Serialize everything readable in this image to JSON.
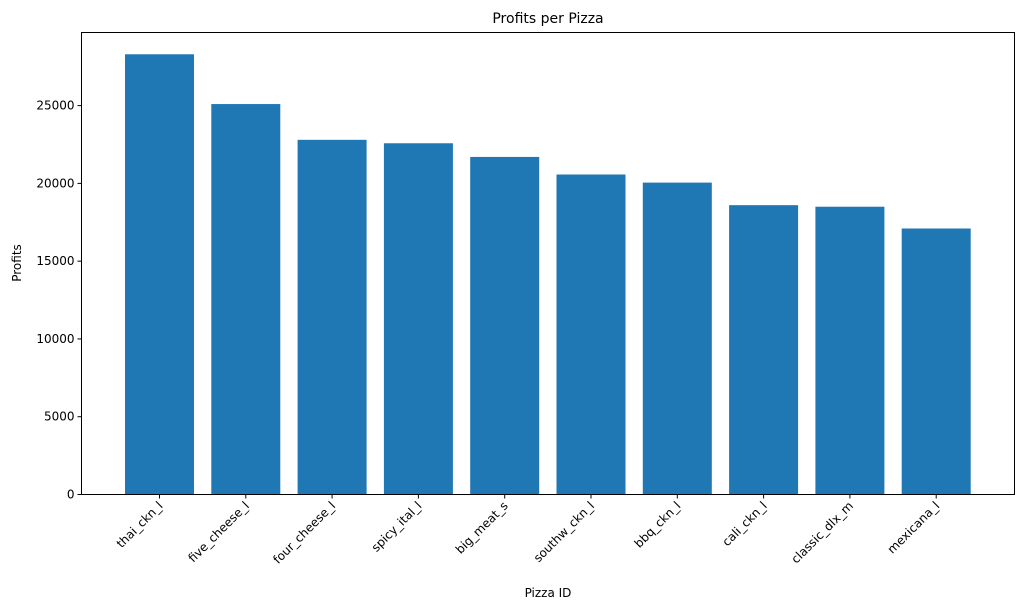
{
  "chart_data": {
    "type": "bar",
    "title": "Profits per Pizza",
    "xlabel": "Pizza ID",
    "ylabel": "Profits",
    "categories": [
      "thai_ckn_l",
      "five_cheese_l",
      "four_cheese_l",
      "spicy_ital_l",
      "big_meat_s",
      "southw_ckn_l",
      "bbq_ckn_l",
      "cali_ckn_l",
      "classic_dlx_m",
      "mexicana_l"
    ],
    "values": [
      28300,
      25100,
      22800,
      22580,
      21700,
      20570,
      20050,
      18600,
      18500,
      17100
    ],
    "ylim": [
      0,
      29700
    ],
    "yticks": [
      0,
      5000,
      10000,
      15000,
      20000,
      25000
    ],
    "grid": false,
    "bar_color": "#1f77b4"
  }
}
